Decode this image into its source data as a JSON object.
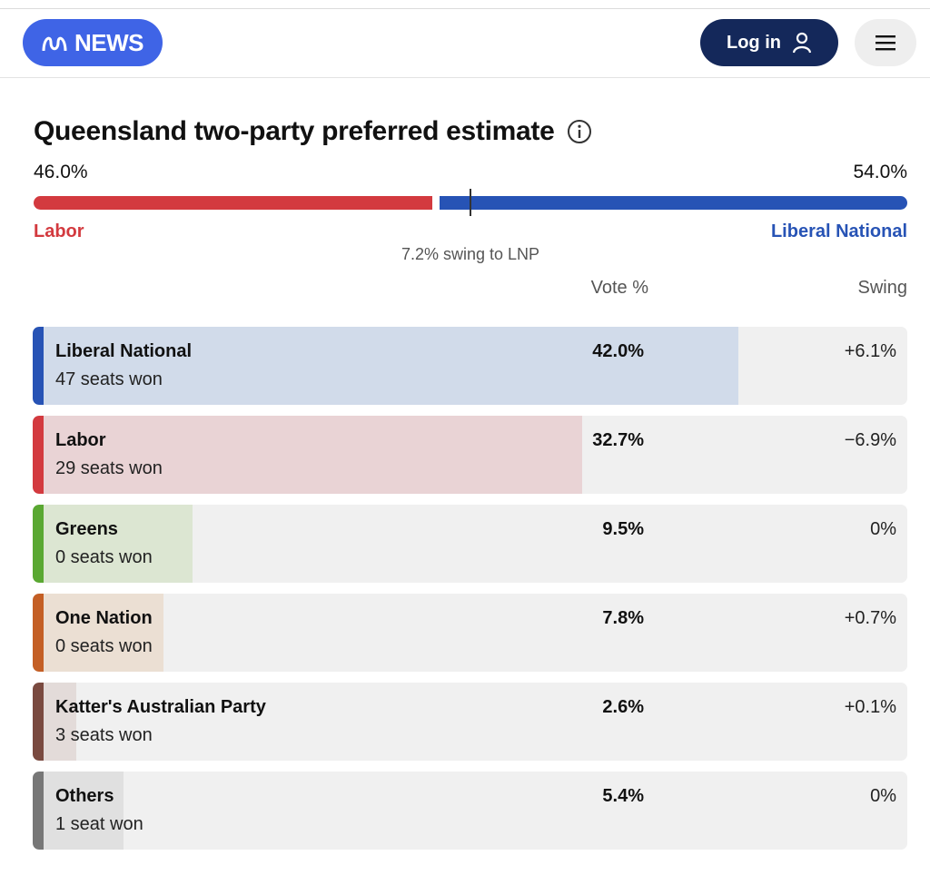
{
  "header": {
    "logo_text": "NEWS",
    "login_label": "Log in"
  },
  "tpp": {
    "title": "Queensland two-party preferred estimate",
    "left_pct": "46.0%",
    "right_pct": "54.0%",
    "left_party": "Labor",
    "right_party": "Liberal National",
    "left_share": 46.0,
    "right_share": 54.0,
    "swing_text": "7.2% swing to LNP"
  },
  "columns": {
    "vote": "Vote %",
    "swing": "Swing"
  },
  "colors": {
    "labor": "#d33a3f",
    "lnp": "#2753b5",
    "greens": "#5aa832",
    "one_nation": "#c45f25",
    "katter": "#7a4a40",
    "others": "#777777"
  },
  "parties": [
    {
      "name": "Liberal National",
      "seats": "47 seats won",
      "vote": "42.0%",
      "swing": "+6.1%",
      "vote_value": 42.0,
      "stripe": "#2753b5",
      "fill": "#d1dbea"
    },
    {
      "name": "Labor",
      "seats": "29 seats won",
      "vote": "32.7%",
      "swing": "−6.9%",
      "vote_value": 32.7,
      "stripe": "#d33a3f",
      "fill": "#e9d3d5"
    },
    {
      "name": "Greens",
      "seats": "0 seats won",
      "vote": "9.5%",
      "swing": "0%",
      "vote_value": 9.5,
      "stripe": "#5aa832",
      "fill": "#dce6d2"
    },
    {
      "name": "One Nation",
      "seats": "0 seats won",
      "vote": "7.8%",
      "swing": "+0.7%",
      "vote_value": 7.8,
      "stripe": "#c45f25",
      "fill": "#ebdfd3"
    },
    {
      "name": "Katter's Australian Party",
      "seats": "3 seats won",
      "vote": "2.6%",
      "swing": "+0.1%",
      "vote_value": 2.6,
      "stripe": "#7a4a40",
      "fill": "#e3dbd9"
    },
    {
      "name": "Others",
      "seats": "1 seat won",
      "vote": "5.4%",
      "swing": "0%",
      "vote_value": 5.4,
      "stripe": "#777777",
      "fill": "#e0e0e0"
    }
  ]
}
